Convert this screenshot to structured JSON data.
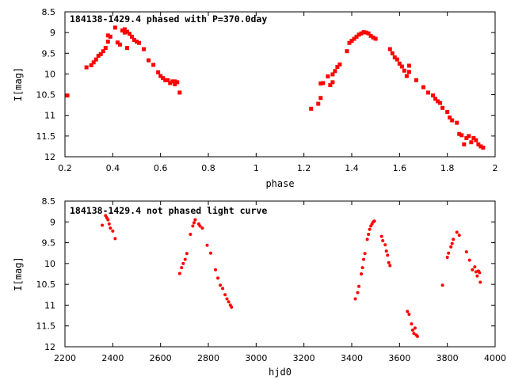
{
  "colors": {
    "points": "#ff0000",
    "axes": "#000000",
    "background": "#ffffff"
  },
  "chart_data": [
    {
      "type": "scatter",
      "title": "184138-1429.4 phased with P=370.0day",
      "xlabel": "phase",
      "ylabel": "I[mag]",
      "xlim": [
        0.2,
        2.0
      ],
      "ylim": [
        12,
        8.5
      ],
      "y_inverted": true,
      "grid": false,
      "x_ticks": [
        "0.2",
        "0.4",
        "0.6",
        "0.8",
        "1",
        "1.2",
        "1.4",
        "1.6",
        "1.8",
        "2"
      ],
      "y_ticks": [
        "8.5",
        "9",
        "9.5",
        "10",
        "10.5",
        "11",
        "11.5",
        "12"
      ],
      "marker": "square",
      "points": [
        [
          0.21,
          10.52
        ],
        [
          0.29,
          9.84
        ],
        [
          0.31,
          9.79
        ],
        [
          0.32,
          9.72
        ],
        [
          0.33,
          9.65
        ],
        [
          0.34,
          9.56
        ],
        [
          0.35,
          9.52
        ],
        [
          0.36,
          9.45
        ],
        [
          0.37,
          9.37
        ],
        [
          0.38,
          9.22
        ],
        [
          0.38,
          9.07
        ],
        [
          0.39,
          9.1
        ],
        [
          0.41,
          8.88
        ],
        [
          0.42,
          9.24
        ],
        [
          0.43,
          9.29
        ],
        [
          0.44,
          8.95
        ],
        [
          0.45,
          8.92
        ],
        [
          0.45,
          9.0
        ],
        [
          0.46,
          9.37
        ],
        [
          0.46,
          8.98
        ],
        [
          0.47,
          9.03
        ],
        [
          0.48,
          9.1
        ],
        [
          0.49,
          9.18
        ],
        [
          0.5,
          9.22
        ],
        [
          0.51,
          9.25
        ],
        [
          0.53,
          9.4
        ],
        [
          0.55,
          9.67
        ],
        [
          0.57,
          9.78
        ],
        [
          0.59,
          9.96
        ],
        [
          0.6,
          10.05
        ],
        [
          0.61,
          10.1
        ],
        [
          0.62,
          10.15
        ],
        [
          0.63,
          10.15
        ],
        [
          0.64,
          10.22
        ],
        [
          0.65,
          10.18
        ],
        [
          0.66,
          10.25
        ],
        [
          0.66,
          10.18
        ],
        [
          0.67,
          10.2
        ],
        [
          0.68,
          10.45
        ],
        [
          1.23,
          10.84
        ],
        [
          1.26,
          10.72
        ],
        [
          1.27,
          10.58
        ],
        [
          1.27,
          10.23
        ],
        [
          1.28,
          10.22
        ],
        [
          1.3,
          10.06
        ],
        [
          1.31,
          10.27
        ],
        [
          1.32,
          10.2
        ],
        [
          1.32,
          10.01
        ],
        [
          1.33,
          9.93
        ],
        [
          1.34,
          9.83
        ],
        [
          1.35,
          9.77
        ],
        [
          1.38,
          9.45
        ],
        [
          1.39,
          9.25
        ],
        [
          1.4,
          9.2
        ],
        [
          1.41,
          9.15
        ],
        [
          1.42,
          9.1
        ],
        [
          1.43,
          9.05
        ],
        [
          1.44,
          9.02
        ],
        [
          1.45,
          8.99
        ],
        [
          1.46,
          9.0
        ],
        [
          1.47,
          9.02
        ],
        [
          1.48,
          9.08
        ],
        [
          1.49,
          9.12
        ],
        [
          1.5,
          9.15
        ],
        [
          1.56,
          9.4
        ],
        [
          1.57,
          9.5
        ],
        [
          1.58,
          9.6
        ],
        [
          1.59,
          9.65
        ],
        [
          1.6,
          9.75
        ],
        [
          1.61,
          9.82
        ],
        [
          1.62,
          9.92
        ],
        [
          1.63,
          10.05
        ],
        [
          1.64,
          9.8
        ],
        [
          1.64,
          9.95
        ],
        [
          1.67,
          10.15
        ],
        [
          1.7,
          10.32
        ],
        [
          1.72,
          10.45
        ],
        [
          1.74,
          10.52
        ],
        [
          1.75,
          10.6
        ],
        [
          1.76,
          10.66
        ],
        [
          1.77,
          10.7
        ],
        [
          1.78,
          10.82
        ],
        [
          1.8,
          10.92
        ],
        [
          1.81,
          11.05
        ],
        [
          1.82,
          11.12
        ],
        [
          1.84,
          11.18
        ],
        [
          1.85,
          11.45
        ],
        [
          1.86,
          11.48
        ],
        [
          1.87,
          11.7
        ],
        [
          1.88,
          11.55
        ],
        [
          1.89,
          11.5
        ],
        [
          1.9,
          11.65
        ],
        [
          1.91,
          11.55
        ],
        [
          1.92,
          11.6
        ],
        [
          1.93,
          11.7
        ],
        [
          1.94,
          11.75
        ],
        [
          1.95,
          11.78
        ]
      ]
    },
    {
      "type": "scatter",
      "title": "184138-1429.4 not phased light curve",
      "xlabel": "hjd0",
      "ylabel": "I[mag]",
      "xlim": [
        2200,
        4000
      ],
      "ylim": [
        12,
        8.5
      ],
      "y_inverted": true,
      "grid": false,
      "x_ticks": [
        "2200",
        "2400",
        "2600",
        "2800",
        "3000",
        "3200",
        "3400",
        "3600",
        "3800",
        "4000"
      ],
      "y_ticks": [
        "8.5",
        "9",
        "9.5",
        "10",
        "10.5",
        "11",
        "11.5",
        "12"
      ],
      "marker": "dot",
      "points": [
        [
          2356,
          9.08
        ],
        [
          2370,
          8.85
        ],
        [
          2375,
          8.9
        ],
        [
          2380,
          8.95
        ],
        [
          2385,
          9.05
        ],
        [
          2390,
          9.15
        ],
        [
          2400,
          9.22
        ],
        [
          2410,
          9.4
        ],
        [
          2680,
          10.24
        ],
        [
          2688,
          10.1
        ],
        [
          2695,
          10.0
        ],
        [
          2703,
          9.9
        ],
        [
          2710,
          9.76
        ],
        [
          2725,
          9.3
        ],
        [
          2735,
          9.1
        ],
        [
          2740,
          9.02
        ],
        [
          2745,
          8.95
        ],
        [
          2760,
          9.05
        ],
        [
          2765,
          9.1
        ],
        [
          2775,
          9.15
        ],
        [
          2795,
          9.56
        ],
        [
          2810,
          9.75
        ],
        [
          2830,
          10.15
        ],
        [
          2840,
          10.35
        ],
        [
          2850,
          10.52
        ],
        [
          2860,
          10.6
        ],
        [
          2870,
          10.75
        ],
        [
          2878,
          10.85
        ],
        [
          2885,
          10.92
        ],
        [
          2892,
          11.0
        ],
        [
          2897,
          11.05
        ],
        [
          3415,
          10.85
        ],
        [
          3425,
          10.7
        ],
        [
          3430,
          10.55
        ],
        [
          3440,
          10.25
        ],
        [
          3445,
          10.1
        ],
        [
          3450,
          9.9
        ],
        [
          3455,
          9.76
        ],
        [
          3465,
          9.42
        ],
        [
          3470,
          9.3
        ],
        [
          3475,
          9.18
        ],
        [
          3480,
          9.1
        ],
        [
          3485,
          9.05
        ],
        [
          3490,
          9.0
        ],
        [
          3495,
          8.98
        ],
        [
          3525,
          9.35
        ],
        [
          3530,
          9.45
        ],
        [
          3540,
          9.55
        ],
        [
          3545,
          9.7
        ],
        [
          3550,
          9.8
        ],
        [
          3555,
          9.98
        ],
        [
          3560,
          10.05
        ],
        [
          3633,
          11.15
        ],
        [
          3640,
          11.22
        ],
        [
          3650,
          11.45
        ],
        [
          3655,
          11.6
        ],
        [
          3660,
          11.68
        ],
        [
          3665,
          11.55
        ],
        [
          3670,
          11.72
        ],
        [
          3675,
          11.75
        ],
        [
          3780,
          10.52
        ],
        [
          3800,
          9.85
        ],
        [
          3805,
          9.75
        ],
        [
          3815,
          9.6
        ],
        [
          3820,
          9.52
        ],
        [
          3825,
          9.42
        ],
        [
          3840,
          9.25
        ],
        [
          3850,
          9.32
        ],
        [
          3880,
          9.72
        ],
        [
          3893,
          9.92
        ],
        [
          3905,
          10.15
        ],
        [
          3915,
          10.08
        ],
        [
          3920,
          10.2
        ],
        [
          3925,
          10.3
        ],
        [
          3930,
          10.18
        ],
        [
          3935,
          10.22
        ],
        [
          3938,
          10.45
        ]
      ]
    }
  ]
}
